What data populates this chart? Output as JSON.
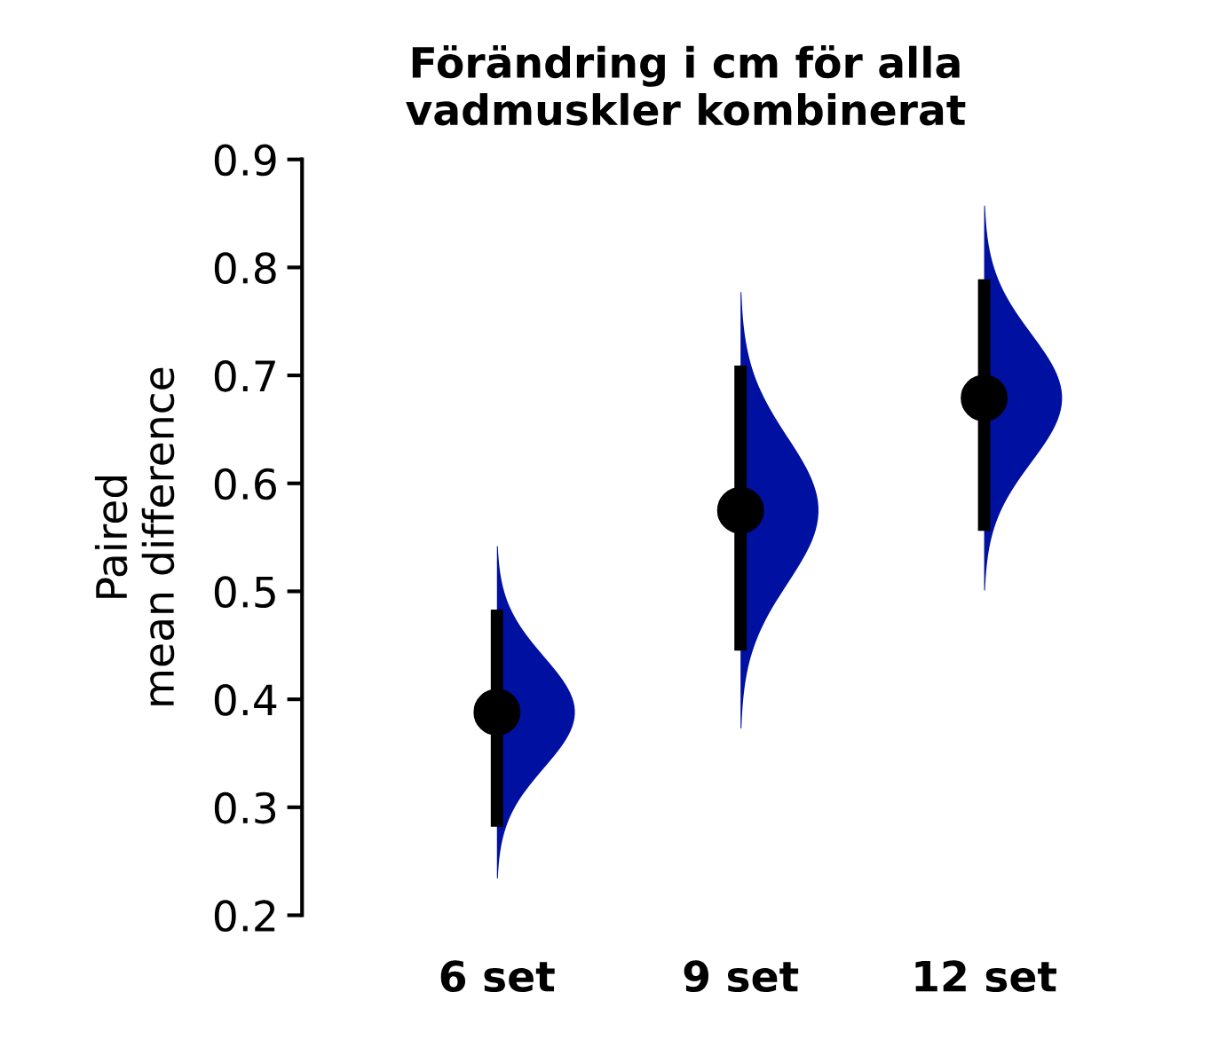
{
  "chart_data": {
    "type": "scatter",
    "title": "Förändring i cm för alla\nvadmuskler kombinerat",
    "ylabel": "Paired\nmean difference",
    "categories": [
      "6 set",
      "9 set",
      "12 set"
    ],
    "series": [
      {
        "color": "#000000",
        "values": [
          0.388,
          0.575,
          0.679
        ],
        "errors": [
          [
            0.282,
            0.483
          ],
          [
            0.445,
            0.709
          ],
          [
            0.556,
            0.789
          ]
        ]
      }
    ],
    "ylim": [
      0.2,
      0.9
    ],
    "yticks": [
      0.2,
      0.3,
      0.4,
      0.5,
      0.6,
      0.7,
      0.8,
      0.9
    ],
    "grid": false,
    "legend": false,
    "marker": "circle"
  }
}
